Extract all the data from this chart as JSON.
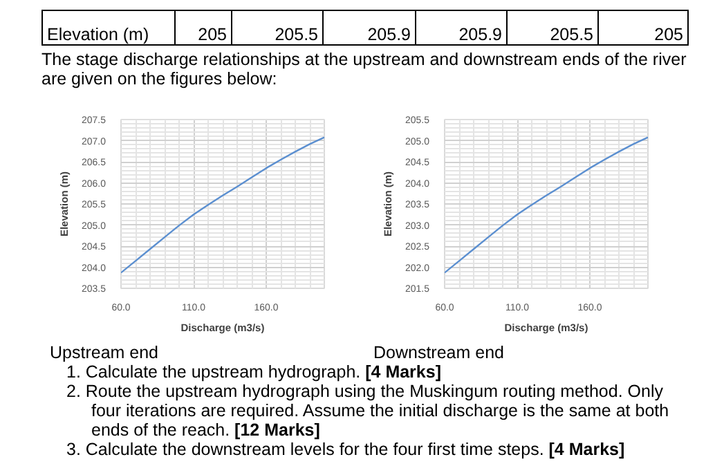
{
  "chart_data": [
    {
      "type": "line",
      "title": "Upstream end",
      "xlabel": "Discharge (m3/s)",
      "ylabel": "Elevation (m)",
      "x": [
        60,
        70,
        80,
        90,
        100,
        110,
        120,
        130,
        140,
        150,
        160,
        170,
        180,
        190,
        200
      ],
      "series": [
        {
          "color": "#5b8fd0",
          "values": [
            203.87,
            204.15,
            204.43,
            204.71,
            204.99,
            205.25,
            205.48,
            205.7,
            205.91,
            206.13,
            206.35,
            206.55,
            206.74,
            206.92,
            207.08
          ]
        }
      ],
      "xlim": [
        60,
        200
      ],
      "ylim": [
        203.5,
        207.5
      ],
      "xticks": [
        {
          "value": 60,
          "label": "60.0"
        },
        {
          "value": 110,
          "label": "110.0"
        },
        {
          "value": 160,
          "label": "160.0"
        }
      ],
      "yticks": [
        203.5,
        {
          "value": 204,
          "label": "204.0"
        },
        204.5,
        {
          "value": 205,
          "label": "205.0"
        },
        205.5,
        {
          "value": 206,
          "label": "206.0"
        },
        206.5,
        {
          "value": 207,
          "label": "207.0"
        },
        207.5
      ],
      "grid": true,
      "annotations": [
        "Elevation (m)",
        "205",
        "205.5",
        "205.9",
        "205.9",
        "205.5",
        "205",
        "The stage discharge relationships at the upstream and downstream ends of the river are given on the figures below:"
      ]
    },
    {
      "type": "line",
      "title": "Downstream end",
      "xlabel": "Discharge (m3/s)",
      "ylabel": "Elevation (m)",
      "x": [
        60,
        70,
        80,
        90,
        100,
        110,
        120,
        130,
        140,
        150,
        160,
        170,
        180,
        190,
        200
      ],
      "series": [
        {
          "color": "#5b8fd0",
          "values": [
            201.87,
            202.15,
            202.43,
            202.71,
            202.99,
            203.25,
            203.48,
            203.7,
            203.91,
            204.13,
            204.35,
            204.55,
            204.74,
            204.92,
            205.08
          ]
        }
      ],
      "xlim": [
        60,
        200
      ],
      "ylim": [
        201.5,
        205.5
      ],
      "xticks": [
        {
          "value": 60,
          "label": "60.0"
        },
        {
          "value": 110,
          "label": "110.0"
        },
        {
          "value": 160,
          "label": "160.0"
        }
      ],
      "yticks": [
        201.5,
        {
          "value": 202,
          "label": "202.0"
        },
        202.5,
        {
          "value": 203,
          "label": "203.0"
        },
        203.5,
        {
          "value": 204,
          "label": "204.0"
        },
        204.5,
        {
          "value": 205,
          "label": "205.0"
        },
        205.5
      ],
      "grid": true,
      "annotations": [
        "1. Calculate the upstream hydrograph. [4 Marks]",
        "2. Route the upstream hydrograph using the Muskingum routing method. Only four iterations are required. Assume the initial discharge is the same at both ends of the reach. [12 Marks]",
        "3. Calculate the downstream levels for the four first time steps. [4 Marks]"
      ]
    }
  ]
}
